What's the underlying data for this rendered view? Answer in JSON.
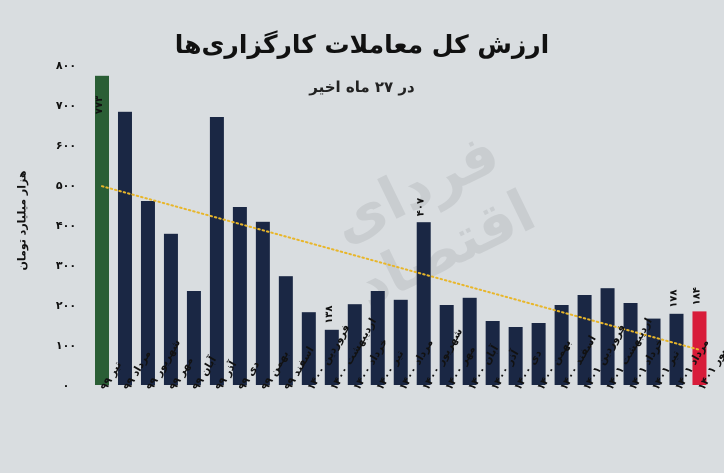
{
  "chart_data": {
    "type": "bar",
    "title": "ارزش کل معاملات کارگزاری‌ها",
    "subtitle": "در ۲۷ ماه اخیر",
    "ylabel": "هزار میلیارد تومان",
    "watermark": "فردای اقتصاد",
    "ylim": [
      0,
      800
    ],
    "yticks": [
      {
        "v": 0,
        "label": "۰"
      },
      {
        "v": 100,
        "label": "۱۰۰"
      },
      {
        "v": 200,
        "label": "۲۰۰"
      },
      {
        "v": 300,
        "label": "۳۰۰"
      },
      {
        "v": 400,
        "label": "۴۰۰"
      },
      {
        "v": 500,
        "label": "۵۰۰"
      },
      {
        "v": 600,
        "label": "۶۰۰"
      },
      {
        "v": 700,
        "label": "۷۰۰"
      },
      {
        "v": 800,
        "label": "۸۰۰"
      }
    ],
    "categories": [
      "تیر ۹۹",
      "مرداد ۹۹",
      "شهریور ۹۹",
      "مهر ۹۹",
      "آبان ۹۹",
      "آذر ۹۹",
      "دی ۹۹",
      "بهمن ۹۹",
      "اسفند ۹۹",
      "فروردین ۱۴۰۰",
      "اردیبهشت ۱۴۰۰",
      "خرداد ۱۴۰۰",
      "تیر ۱۴۰۰",
      "مرداد ۱۴۰۰",
      "شهریور ۱۴۰۰",
      "مهر ۱۴۰۰",
      "آبان ۱۴۰۰",
      "آذر ۱۴۰۰",
      "دی ۱۴۰۰",
      "بهمن ۱۴۰۰",
      "اسفند ۱۴۰۰",
      "فروردین ۱۴۰۱",
      "اردیبهشت ۱۴۰۱",
      "خرداد ۱۴۰۱",
      "تیر ۱۴۰۱",
      "مرداد ۱۴۰۱",
      "شهریور ۱۴۰۱"
    ],
    "values": [
      773,
      683,
      460,
      378,
      235,
      670,
      445,
      408,
      272,
      182,
      138,
      202,
      235,
      213,
      407,
      200,
      218,
      160,
      145,
      155,
      200,
      225,
      242,
      205,
      166,
      178,
      184
    ],
    "value_labels": [
      {
        "index": 0,
        "label": "۷۷۳"
      },
      {
        "index": 10,
        "label": "۱۳۸"
      },
      {
        "index": 14,
        "label": "۴۰۷"
      },
      {
        "index": 25,
        "label": "۱۷۸"
      },
      {
        "index": 26,
        "label": "۱۸۴"
      }
    ],
    "highlight": {
      "0": "#2a5e35",
      "26": "#d81c3a"
    },
    "bar_color": "#1a2744",
    "trendline": {
      "color": "#e8b62a",
      "style": "dotted",
      "start": 497,
      "end": 88
    },
    "grid": false
  }
}
